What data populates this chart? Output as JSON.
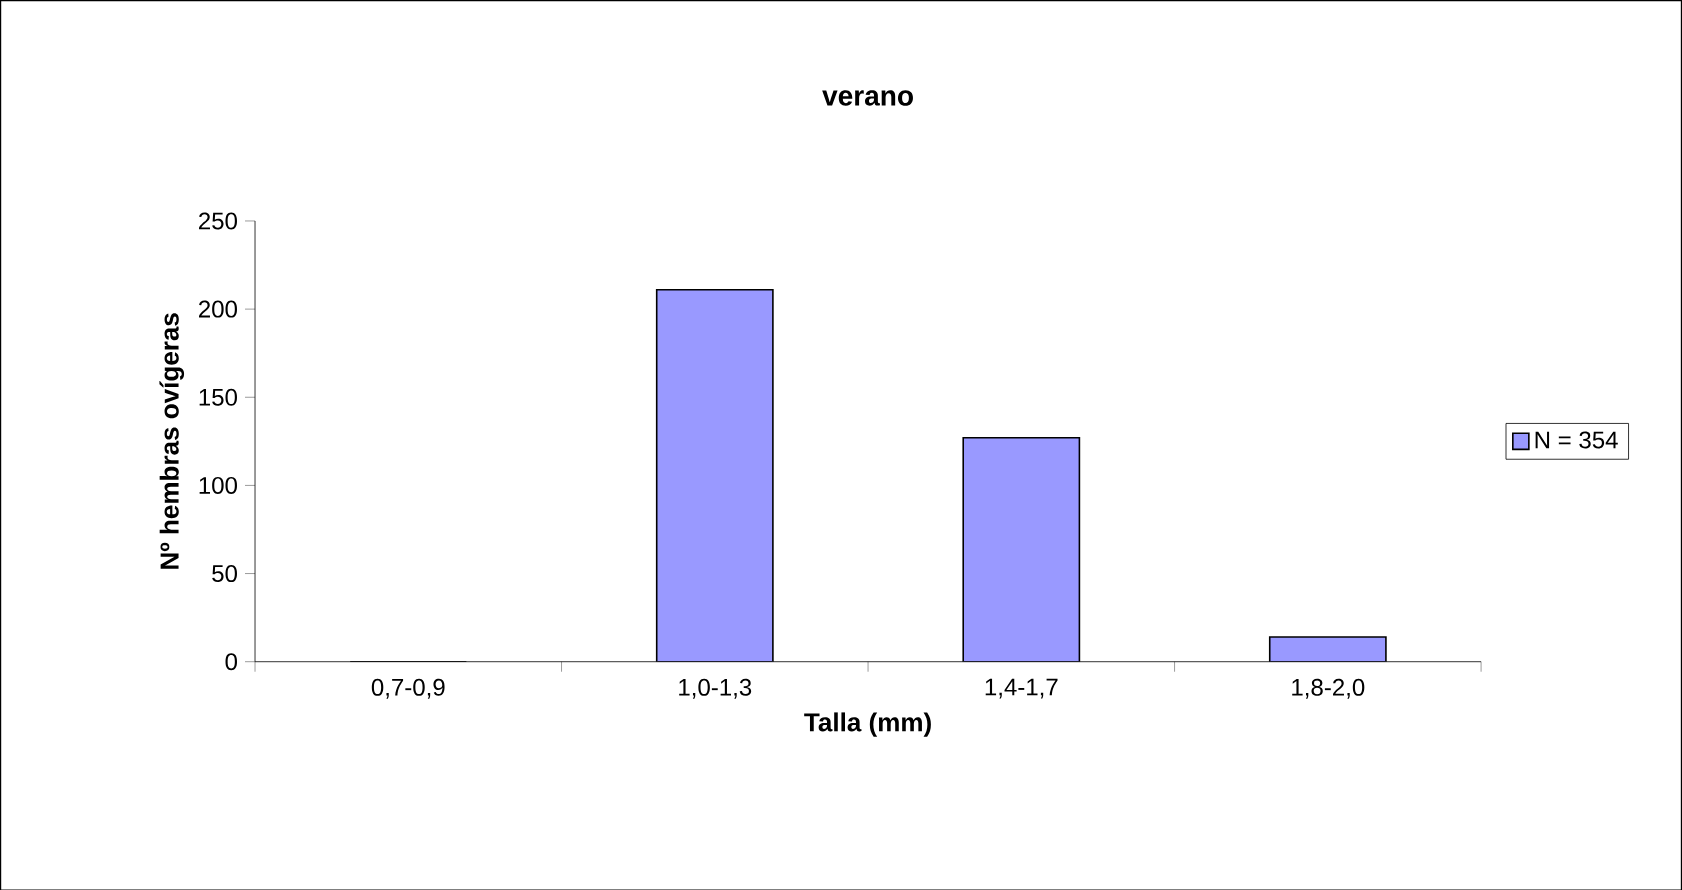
{
  "chart_data": {
    "type": "bar",
    "title": "verano",
    "xlabel": "Talla (mm)",
    "ylabel": "Nº hembras ovígeras",
    "categories": [
      "0,7-0,9",
      "1,0-1,3",
      "1,4-1,7",
      "1,8-2,0"
    ],
    "series": [
      {
        "name": "N = 354",
        "color": "#9999ff",
        "values": [
          0,
          211,
          127,
          14
        ]
      }
    ],
    "ylim": [
      0,
      250
    ],
    "yticks": [
      0,
      50,
      100,
      150,
      200,
      250
    ],
    "grid": false,
    "legend": "right"
  }
}
